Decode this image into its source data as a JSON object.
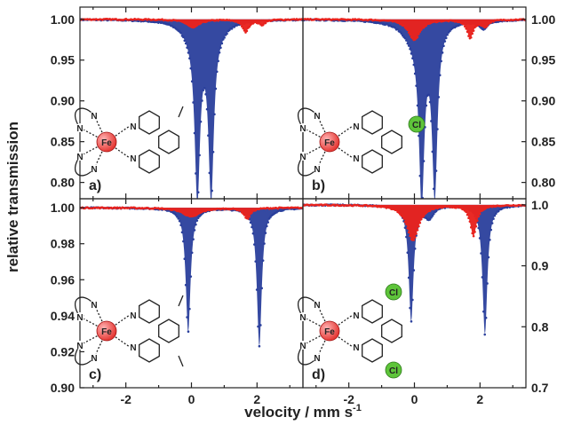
{
  "xlabel": "velocity / mm s",
  "xlabel_sup": "-1",
  "ylabel": "relative transmission",
  "colors": {
    "blue_series": "#2a3f9c",
    "red_series": "#e8231e",
    "axis": "#222222",
    "fe_atom": "#e53935",
    "cl_atom": "#5ec43a"
  },
  "chart_data": [
    {
      "type": "area",
      "panel": "a)",
      "ylim": [
        0.78,
        1.015
      ],
      "yticks": [
        "1.00",
        "0.95",
        "0.90",
        "0.85",
        "0.80"
      ],
      "ytick_values": [
        1.0,
        0.95,
        0.9,
        0.85,
        0.8
      ],
      "ytick_side": "left",
      "xlim": [
        -3.4,
        3.4
      ],
      "xticks": [],
      "xtick_values": [],
      "substituents": [],
      "series": [
        {
          "color": "blue",
          "baseline": 1.0,
          "peaks": [
            [
              0.18,
              0.205,
              0.1
            ],
            [
              0.6,
              0.205,
              0.1
            ],
            [
              0.0,
              0.012,
              0.35
            ],
            [
              0.8,
              0.008,
              0.35
            ]
          ]
        },
        {
          "color": "red",
          "baseline": 1.0,
          "peaks": [
            [
              0.05,
              0.01,
              0.22
            ],
            [
              1.65,
              0.015,
              0.12
            ],
            [
              2.15,
              0.006,
              0.12
            ]
          ]
        }
      ]
    },
    {
      "type": "area",
      "panel": "b)",
      "ylim": [
        0.78,
        1.015
      ],
      "yticks": [
        "1.00",
        "0.95",
        "0.90",
        "0.85",
        "0.80"
      ],
      "ytick_values": [
        1.0,
        0.95,
        0.9,
        0.85,
        0.8
      ],
      "ytick_side": "right",
      "xlim": [
        -3.4,
        3.4
      ],
      "xticks": [],
      "xtick_values": [],
      "substituents": [
        "Cl"
      ],
      "series": [
        {
          "color": "blue",
          "baseline": 1.0,
          "peaks": [
            [
              0.22,
              0.205,
              0.1
            ],
            [
              0.62,
              0.205,
              0.1
            ],
            [
              0.0,
              0.02,
              0.4
            ],
            [
              2.1,
              0.01,
              0.15
            ]
          ]
        },
        {
          "color": "red",
          "baseline": 1.0,
          "peaks": [
            [
              0.0,
              0.025,
              0.22
            ],
            [
              1.7,
              0.022,
              0.12
            ],
            [
              2.15,
              0.008,
              0.12
            ]
          ]
        }
      ]
    },
    {
      "type": "area",
      "panel": "c)",
      "ylim": [
        0.9,
        1.005
      ],
      "yticks": [
        "1.00",
        "0.98",
        "0.96",
        "0.94",
        "0.92",
        "0.90"
      ],
      "ytick_values": [
        1.0,
        0.98,
        0.96,
        0.94,
        0.92,
        0.9
      ],
      "ytick_side": "left",
      "xlim": [
        -3.4,
        3.4
      ],
      "xticks": [
        "-2",
        "0",
        "2"
      ],
      "xtick_values": [
        -2,
        0,
        2
      ],
      "substituents": [],
      "series": [
        {
          "color": "blue",
          "baseline": 1.0,
          "peaks": [
            [
              -0.1,
              0.069,
              0.09
            ],
            [
              2.07,
              0.077,
              0.09
            ]
          ]
        },
        {
          "color": "red",
          "baseline": 1.0,
          "peaks": [
            [
              0.0,
              0.005,
              0.3
            ],
            [
              1.7,
              0.006,
              0.12
            ]
          ]
        }
      ]
    },
    {
      "type": "area",
      "panel": "d)",
      "ylim": [
        0.7,
        1.01
      ],
      "yticks": [
        "1.0",
        "0.9",
        "0.8",
        "0.7"
      ],
      "ytick_values": [
        1.0,
        0.9,
        0.8,
        0.7
      ],
      "ytick_side": "right",
      "xlim": [
        -3.4,
        3.4
      ],
      "xticks": [
        "-2",
        "0",
        "2"
      ],
      "xtick_values": [
        -2,
        0,
        2
      ],
      "substituents": [
        "Cl",
        "Cl"
      ],
      "series": [
        {
          "color": "blue",
          "baseline": 1.0,
          "peaks": [
            [
              -0.1,
              0.19,
              0.09
            ],
            [
              0.45,
              0.02,
              0.15
            ],
            [
              2.15,
              0.212,
              0.09
            ]
          ]
        },
        {
          "color": "red",
          "baseline": 1.0,
          "peaks": [
            [
              -0.05,
              0.058,
              0.22
            ],
            [
              1.8,
              0.05,
              0.12
            ]
          ]
        }
      ]
    }
  ]
}
